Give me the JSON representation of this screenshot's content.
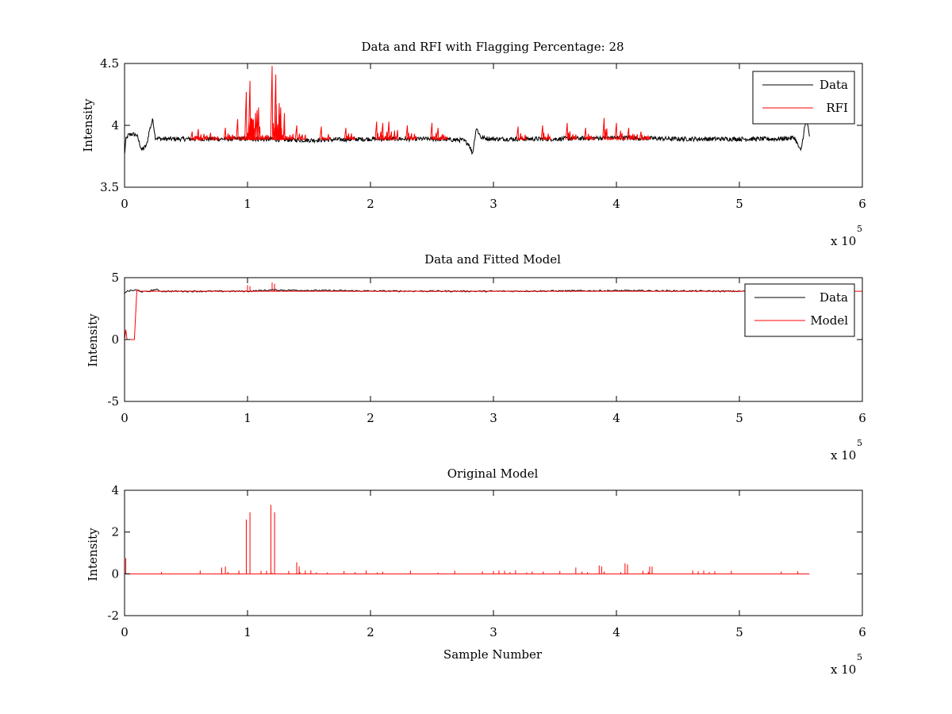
{
  "figure": {
    "background": "#ffffff"
  },
  "chart_data": [
    {
      "type": "line",
      "title": "Data and RFI with Flagging Percentage: 28",
      "xlabel": "",
      "ylabel": "Intensity",
      "xlim": [
        0,
        6
      ],
      "ylim": [
        3.5,
        4.5
      ],
      "xticks": [
        "0",
        "1",
        "2",
        "3",
        "4",
        "5",
        "6"
      ],
      "yticks": [
        "3.5",
        "4",
        "4.5"
      ],
      "ytick_values": [
        3.5,
        4,
        4.5
      ],
      "exponent_label": "x 10",
      "exponent_power": "5",
      "legend": {
        "placement": "top-right",
        "entries": [
          {
            "label": "Data",
            "color": "#000000"
          },
          {
            "label": "RFI",
            "color": "#ff0000"
          }
        ]
      },
      "series": [
        {
          "name": "Data",
          "color": "#000000",
          "x": [
            0,
            0.01,
            0.03,
            0.06,
            0.1,
            0.14,
            0.18,
            0.2,
            0.23,
            0.25,
            0.3,
            0.5,
            1.0,
            1.5,
            2.0,
            2.5,
            2.75,
            2.8,
            2.83,
            2.86,
            2.9,
            3.0,
            3.5,
            4.0,
            4.5,
            5.0,
            5.3,
            5.45,
            5.48,
            5.5,
            5.53,
            5.55,
            5.57
          ],
          "y": [
            3.76,
            3.88,
            3.92,
            3.93,
            3.92,
            3.8,
            3.84,
            3.95,
            4.05,
            3.9,
            3.89,
            3.89,
            3.89,
            3.88,
            3.89,
            3.89,
            3.88,
            3.85,
            3.77,
            3.98,
            3.9,
            3.89,
            3.89,
            3.9,
            3.89,
            3.89,
            3.89,
            3.9,
            3.83,
            3.79,
            3.98,
            4.04,
            3.9
          ]
        },
        {
          "name": "RFI",
          "color": "#ff0000",
          "x": [
            0.55,
            0.6,
            0.7,
            0.82,
            0.92,
            0.99,
            1.0,
            1.02,
            1.03,
            1.1,
            1.2,
            1.21,
            1.23,
            1.24,
            1.3,
            1.4,
            1.6,
            1.8,
            2.05,
            2.1,
            2.15,
            2.3,
            2.5,
            2.55,
            3.2,
            3.4,
            3.6,
            3.75,
            3.9,
            4.0,
            4.1,
            4.2
          ],
          "y": [
            3.95,
            3.97,
            3.94,
            3.98,
            4.05,
            4.27,
            3.9,
            4.36,
            3.9,
            3.99,
            4.48,
            3.9,
            4.41,
            3.9,
            3.97,
            4.0,
            3.99,
            3.98,
            4.03,
            4.02,
            4.03,
            4.0,
            4.02,
            3.98,
            3.99,
            4.0,
            4.02,
            3.98,
            4.06,
            4.02,
            3.98,
            3.95
          ]
        }
      ]
    },
    {
      "type": "line",
      "title": "Data and Fitted Model",
      "xlabel": "",
      "ylabel": "Intensity",
      "xlim": [
        0,
        6
      ],
      "ylim": [
        -5,
        5
      ],
      "xticks": [
        "0",
        "1",
        "2",
        "3",
        "4",
        "5",
        "6"
      ],
      "yticks": [
        "-5",
        "0",
        "5"
      ],
      "ytick_values": [
        -5,
        0,
        5
      ],
      "exponent_label": "x 10",
      "exponent_power": "5",
      "legend": {
        "placement": "top-right",
        "entries": [
          {
            "label": "Data",
            "color": "#000000"
          },
          {
            "label": "Model",
            "color": "#ff0000"
          }
        ]
      },
      "series": [
        {
          "name": "Data",
          "color": "#000000",
          "x": [
            0,
            0.02,
            0.05,
            0.1,
            0.15,
            0.2,
            0.25,
            0.3,
            1.0,
            1.2,
            2.0,
            3.0,
            4.0,
            5.0,
            5.57
          ],
          "y": [
            3.8,
            3.9,
            3.95,
            4.0,
            3.85,
            3.9,
            4.05,
            3.9,
            3.9,
            4.0,
            3.92,
            3.9,
            3.95,
            3.9,
            3.9
          ]
        },
        {
          "name": "Model",
          "color": "#ff0000",
          "x": [
            0,
            0.01,
            0.02,
            0.03,
            0.08,
            0.09,
            0.1,
            0.12,
            6.0
          ],
          "y": [
            0,
            0.8,
            0,
            0,
            0,
            2.0,
            4.0,
            3.9,
            3.9
          ]
        }
      ],
      "spikes": {
        "x": [
          1.0,
          1.02,
          1.2,
          1.22
        ],
        "y": [
          4.4,
          4.3,
          4.6,
          4.5
        ]
      }
    },
    {
      "type": "line",
      "title": "Original Model",
      "xlabel": "Sample Number",
      "ylabel": "Intensity",
      "xlim": [
        0,
        6
      ],
      "ylim": [
        -2,
        4
      ],
      "xticks": [
        "0",
        "1",
        "2",
        "3",
        "4",
        "5",
        "6"
      ],
      "yticks": [
        "-2",
        "0",
        "2",
        "4"
      ],
      "ytick_values": [
        -2,
        0,
        2,
        4
      ],
      "exponent_label": "x 10",
      "exponent_power": "5",
      "series": [
        {
          "color": "#ff0000",
          "range": [
            0,
            5.57
          ],
          "baseline": 0,
          "spikes_x": [
            0.01,
            0.79,
            0.82,
            0.99,
            1.02,
            1.19,
            1.22,
            1.4,
            1.42,
            3.67,
            3.86,
            3.88,
            4.07,
            4.09,
            4.27,
            4.29
          ],
          "spikes_y": [
            0.75,
            0.3,
            0.35,
            2.6,
            2.95,
            3.3,
            2.95,
            0.55,
            0.35,
            0.3,
            0.4,
            0.35,
            0.5,
            0.45,
            0.35,
            0.35
          ]
        }
      ]
    }
  ]
}
